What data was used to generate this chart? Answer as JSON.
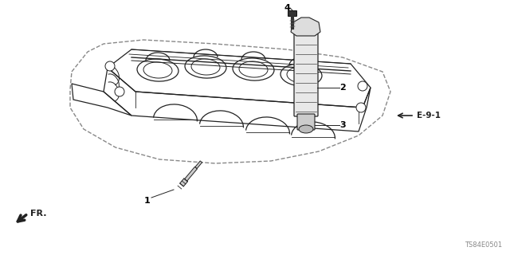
{
  "bg_color": "#ffffff",
  "diagram_code": "TS84E0501",
  "line_color": "#222222",
  "gray": "#666666",
  "light_gray": "#aaaaaa",
  "dashed_color": "#888888",
  "figsize": [
    6.4,
    3.2
  ],
  "dpi": 100
}
